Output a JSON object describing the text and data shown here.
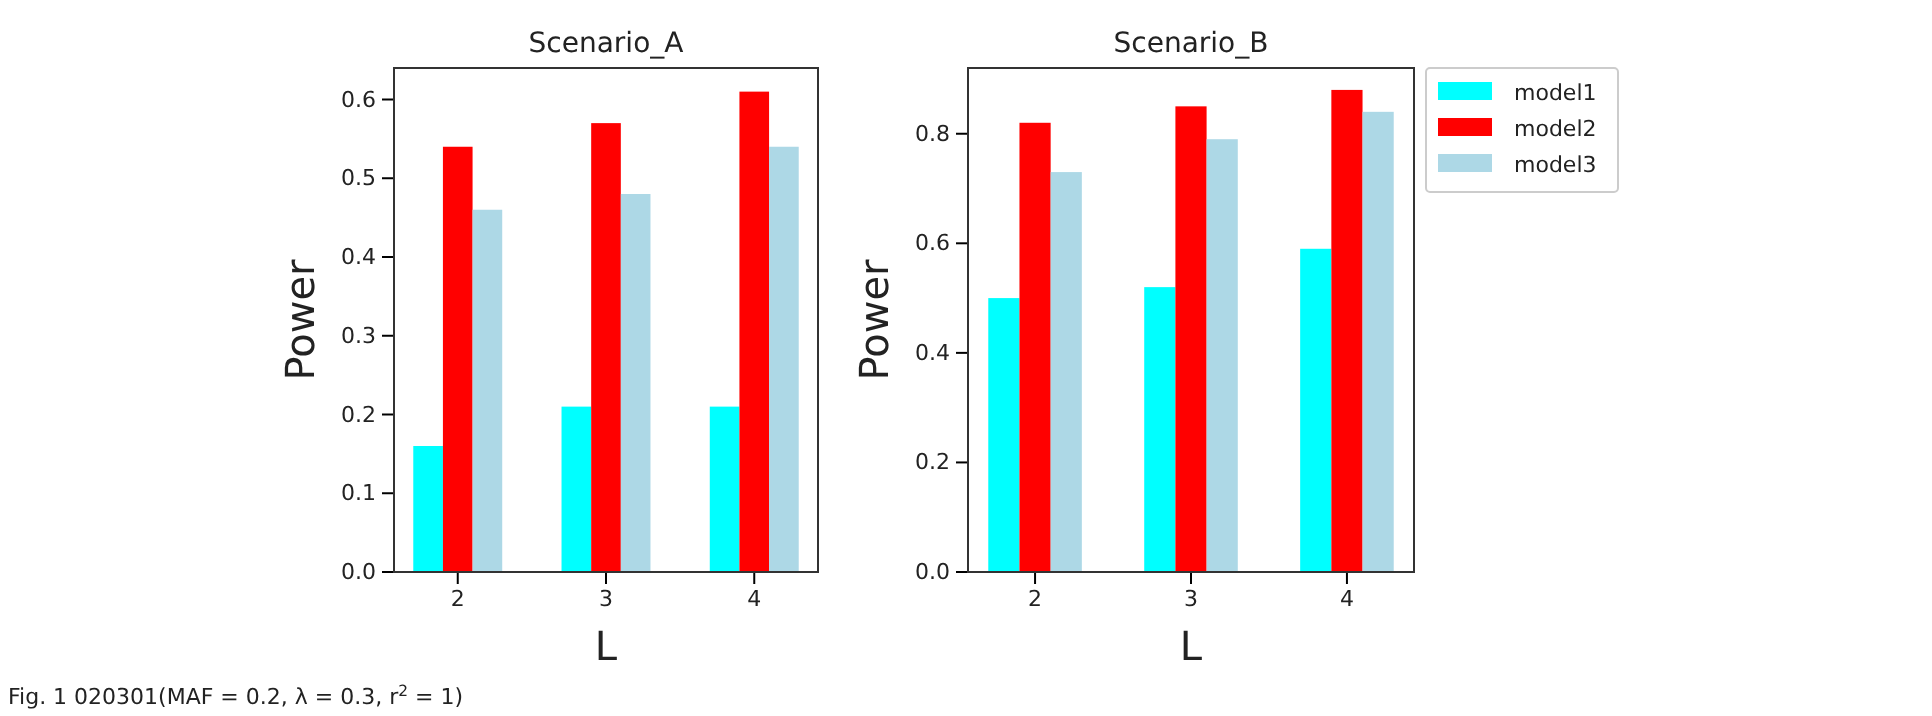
{
  "chart_data": [
    {
      "type": "bar",
      "title": "Scenario_A",
      "xlabel": "L",
      "ylabel": "Power",
      "categories": [
        "2",
        "3",
        "4"
      ],
      "series": [
        {
          "color": "#00ffff",
          "values": [
            0.16,
            0.21,
            0.21
          ]
        },
        {
          "color": "#ff0000",
          "values": [
            0.54,
            0.57,
            0.61
          ]
        },
        {
          "color": "#add8e6",
          "values": [
            0.46,
            0.48,
            0.54
          ]
        }
      ],
      "ylim": [
        0,
        0.64
      ],
      "yticks": [
        {
          "value": 0,
          "label": "0.0"
        },
        0.1,
        0.2,
        0.3,
        0.4,
        0.5,
        0.6
      ],
      "annotations": [
        "Fig. 1 020301(MAF = 0.2, λ = 0.3, r$^{2}$ = 1)"
      ]
    },
    {
      "type": "bar",
      "title": "Scenario_B",
      "xlabel": "L",
      "ylabel": "Power",
      "categories": [
        "2",
        "3",
        "4"
      ],
      "series": [
        {
          "name": "model1",
          "color": "#00ffff",
          "values": [
            0.5,
            0.52,
            0.59
          ]
        },
        {
          "name": "model2",
          "color": "#ff0000",
          "values": [
            0.82,
            0.85,
            0.88
          ]
        },
        {
          "name": "model3",
          "color": "#add8e6",
          "values": [
            0.73,
            0.79,
            0.84
          ]
        }
      ],
      "ylim": [
        0,
        0.92
      ],
      "yticks": [
        {
          "value": 0,
          "label": "0.0"
        },
        0.2,
        0.4,
        0.6,
        0.8
      ],
      "legend": "top right"
    }
  ]
}
